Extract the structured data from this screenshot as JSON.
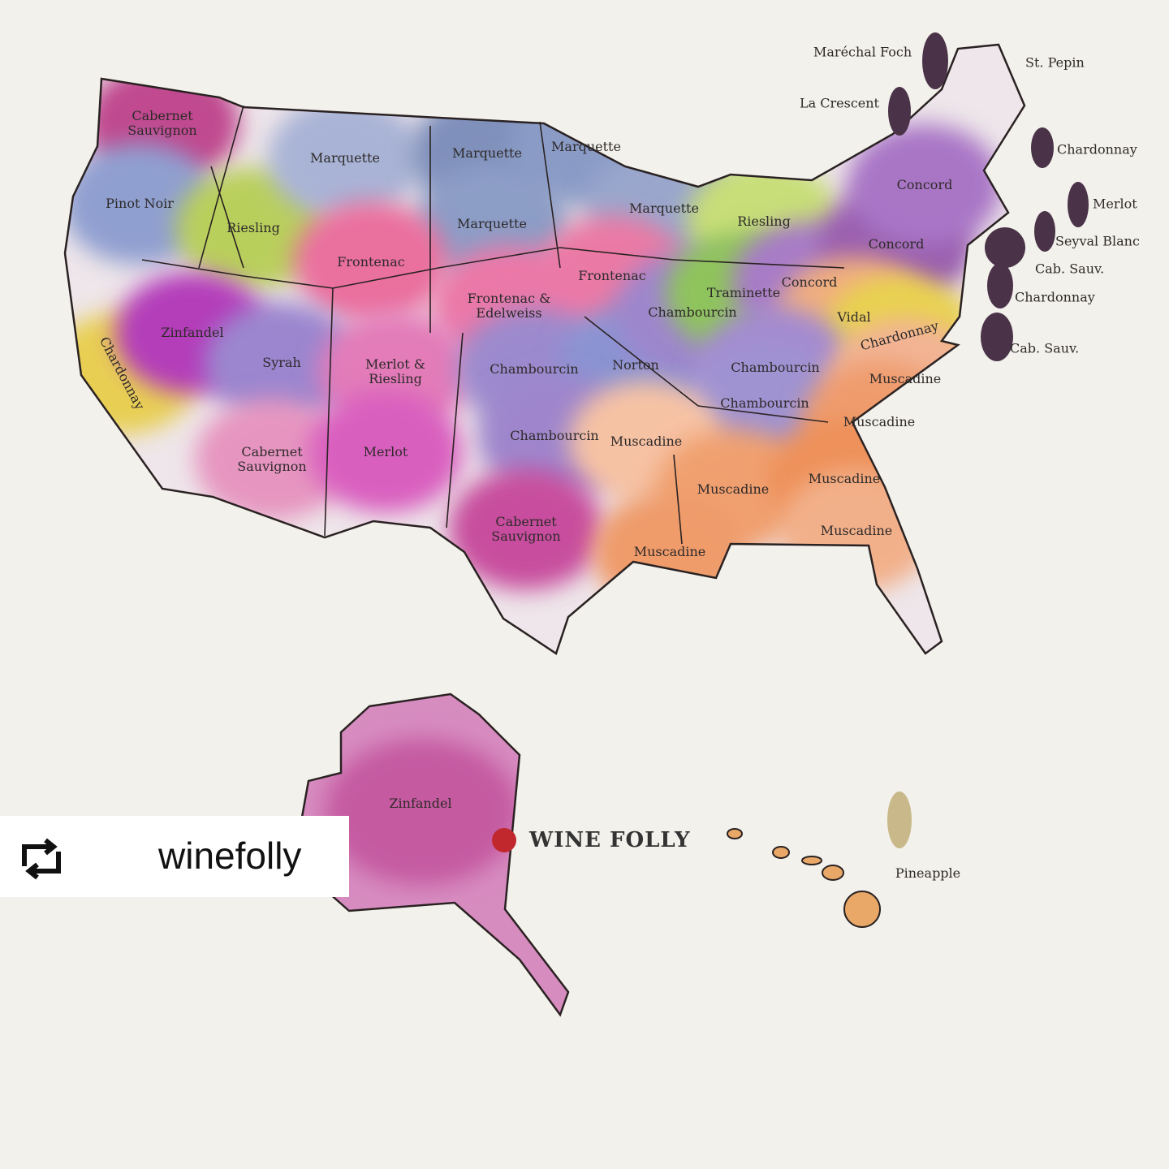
{
  "map": {
    "labels": [
      "Cabernet Sauvignon",
      "Pinot Noir",
      "Riesling",
      "Marquette",
      "Marquette",
      "Marquette",
      "Marquette",
      "Marquette",
      "Riesling",
      "Frontenac",
      "Frontenac",
      "Frontenac & Edelweiss",
      "Chardonnay",
      "Zinfandel",
      "Syrah",
      "Merlot & Riesling",
      "Chambourcin",
      "Norton",
      "Chambourcin",
      "Traminette",
      "Concord",
      "Concord",
      "Concord",
      "Vidal",
      "Chardonnay",
      "Chambourcin",
      "Chambourcin",
      "Muscadine",
      "Muscadine",
      "Chambourcin",
      "Muscadine",
      "Cabernet Sauvignon",
      "Merlot",
      "Cabernet Sauvignon",
      "Muscadine",
      "Muscadine",
      "Muscadine",
      "Muscadine",
      "Zinfandel",
      "Pineapple"
    ],
    "callouts": [
      "Maréchal Foch",
      "St. Pepin",
      "La Crescent",
      "Chardonnay",
      "Merlot",
      "Seyval Blanc",
      "Cab. Sauv.",
      "Chardonnay",
      "Cab. Sauv."
    ]
  },
  "brand": "WINE FOLLY",
  "repost": {
    "username": "winefolly"
  }
}
